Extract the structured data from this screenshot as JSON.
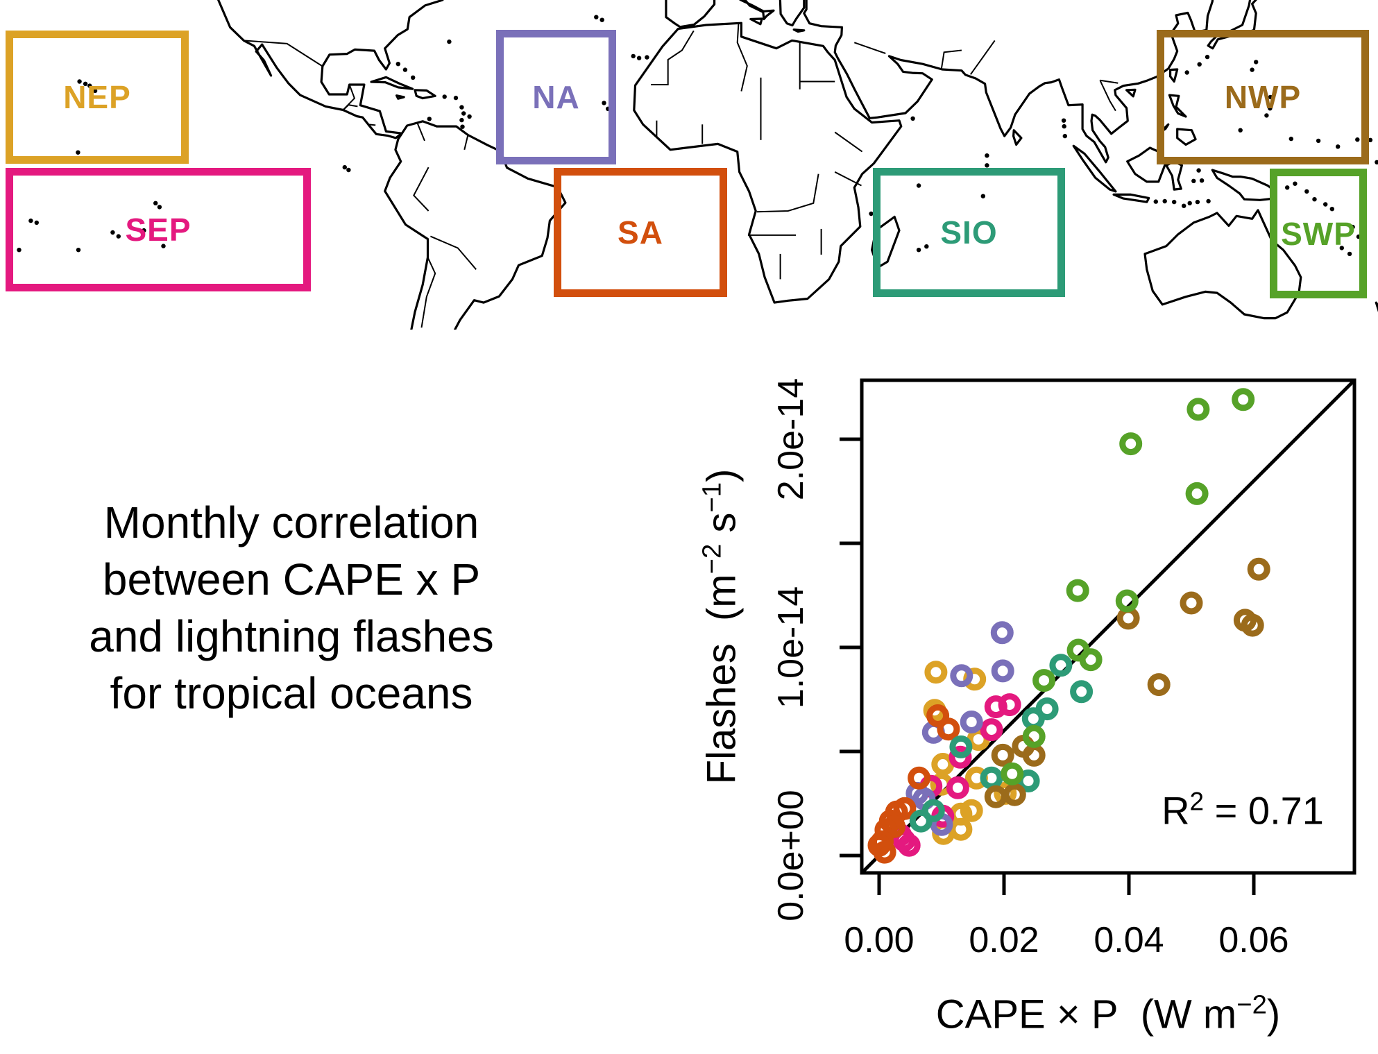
{
  "map": {
    "regions": [
      {
        "id": "NEP",
        "label": "NEP",
        "color": "#DCA226"
      },
      {
        "id": "SEP",
        "label": "SEP",
        "color": "#E4197F"
      },
      {
        "id": "NA",
        "label": "NA",
        "color": "#7A70B9"
      },
      {
        "id": "SA",
        "label": "SA",
        "color": "#D24F0D"
      },
      {
        "id": "SIO",
        "label": "SIO",
        "color": "#2D9B77"
      },
      {
        "id": "NWP",
        "label": "NWP",
        "color": "#9B6B1B"
      },
      {
        "id": "SWP",
        "label": "SWP",
        "color": "#56A228"
      }
    ]
  },
  "caption": {
    "lines": [
      "Monthly correlation",
      "between CAPE x P",
      "and lightning flashes",
      "for tropical oceans"
    ]
  },
  "scatter": {
    "x_axis": {
      "tick_labels": [
        "0.00",
        "0.02",
        "0.04",
        "0.06"
      ],
      "title": {
        "pre": "CAPE × P  (W m",
        "sup": "−2",
        "post": ")"
      }
    },
    "y_axis": {
      "tick_labels": [
        "0.0e+00",
        "1.0e-14",
        "2.0e-14"
      ],
      "title": {
        "pre": "Flashes  (m",
        "sup1": "−2",
        "mid": " s",
        "sup2": "−1",
        "post": ")"
      }
    },
    "annotation": {
      "pre": "R",
      "sup": "2",
      "post": " = 0.71"
    }
  },
  "chart_data": {
    "type": "scatter",
    "title": "Monthly correlation between CAPE x P and lightning flashes for tropical oceans",
    "xlabel": "CAPE × P (W m−2)",
    "ylabel": "Flashes (m−2 s−1)",
    "x_ticks": [
      0.0,
      0.02,
      0.04,
      0.06
    ],
    "y_ticks_e14": [
      0.0,
      0.5,
      1.0,
      1.5,
      2.0
    ],
    "y_tick_label_values": [
      "0.0e+00",
      "1.0e-14",
      "2.0e-14"
    ],
    "xlim": [
      -0.00278,
      0.07611
    ],
    "ylim_e14": [
      -0.09,
      2.283
    ],
    "y_unit_scale": "1e-14 m-2 s-1",
    "identity_line": true,
    "r_squared": 0.71,
    "legend_position": "map-boxes",
    "grid": false,
    "series": [
      {
        "name": "NEP",
        "color": "#DCA226",
        "points": [
          [
            0.0091,
            0.877
          ],
          [
            0.0153,
            0.843
          ],
          [
            0.0089,
            0.693
          ],
          [
            0.0159,
            0.553
          ],
          [
            0.0102,
            0.433
          ],
          [
            0.0156,
            0.367
          ],
          [
            0.01,
            0.337
          ],
          [
            0.0202,
            0.293
          ],
          [
            0.0148,
            0.21
          ],
          [
            0.0131,
            0.193
          ],
          [
            0.0131,
            0.12
          ],
          [
            0.0103,
            0.1
          ]
        ]
      },
      {
        "name": "SEP",
        "color": "#E4197F",
        "points": [
          [
            0.0209,
            0.72
          ],
          [
            0.0187,
            0.71
          ],
          [
            0.018,
            0.6
          ],
          [
            0.013,
            0.467
          ],
          [
            0.0083,
            0.327
          ],
          [
            0.0126,
            0.32
          ],
          [
            0.0102,
            0.183
          ],
          [
            0.0034,
            0.093
          ],
          [
            0.004,
            0.067
          ],
          [
            0.0048,
            0.043
          ]
        ]
      },
      {
        "name": "NA",
        "color": "#7A70B9",
        "points": [
          [
            0.0197,
            1.067
          ],
          [
            0.0198,
            0.883
          ],
          [
            0.0132,
            0.86
          ],
          [
            0.0148,
            0.637
          ],
          [
            0.0087,
            0.587
          ],
          [
            0.0061,
            0.293
          ],
          [
            0.0072,
            0.267
          ],
          [
            0.01,
            0.143
          ]
        ]
      },
      {
        "name": "SA",
        "color": "#D24F0D",
        "points": [
          [
            0.0094,
            0.667
          ],
          [
            0.0111,
            0.603
          ],
          [
            0.0064,
            0.367
          ],
          [
            0.0041,
            0.22
          ],
          [
            0.0028,
            0.203
          ],
          [
            0.0018,
            0.16
          ],
          [
            0.0024,
            0.133
          ],
          [
            0.0011,
            0.117
          ],
          [
            0.0005,
            0.06
          ],
          [
            0.0,
            0.043
          ],
          [
            0.0009,
            0.01
          ]
        ]
      },
      {
        "name": "SIO",
        "color": "#2D9B77",
        "points": [
          [
            0.0291,
            0.91
          ],
          [
            0.0324,
            0.783
          ],
          [
            0.0269,
            0.7
          ],
          [
            0.0247,
            0.653
          ],
          [
            0.0131,
            0.517
          ],
          [
            0.018,
            0.367
          ],
          [
            0.0239,
            0.353
          ],
          [
            0.0087,
            0.21
          ],
          [
            0.0067,
            0.16
          ]
        ]
      },
      {
        "name": "NWP",
        "color": "#9B6B1B",
        "points": [
          [
            0.0608,
            1.373
          ],
          [
            0.05,
            1.21
          ],
          [
            0.0399,
            1.137
          ],
          [
            0.0586,
            1.127
          ],
          [
            0.0598,
            1.103
          ],
          [
            0.0448,
            0.817
          ],
          [
            0.0231,
            0.52
          ],
          [
            0.0248,
            0.477
          ],
          [
            0.0198,
            0.477
          ],
          [
            0.0217,
            0.287
          ],
          [
            0.0187,
            0.277
          ]
        ]
      },
      {
        "name": "SWP",
        "color": "#56A228",
        "points": [
          [
            0.0583,
            2.19
          ],
          [
            0.0511,
            2.143
          ],
          [
            0.0403,
            1.977
          ],
          [
            0.0509,
            1.737
          ],
          [
            0.0318,
            1.27
          ],
          [
            0.0397,
            1.22
          ],
          [
            0.0319,
            0.983
          ],
          [
            0.0339,
            0.937
          ],
          [
            0.0264,
            0.837
          ],
          [
            0.0248,
            0.567
          ],
          [
            0.0213,
            0.387
          ]
        ]
      }
    ]
  }
}
